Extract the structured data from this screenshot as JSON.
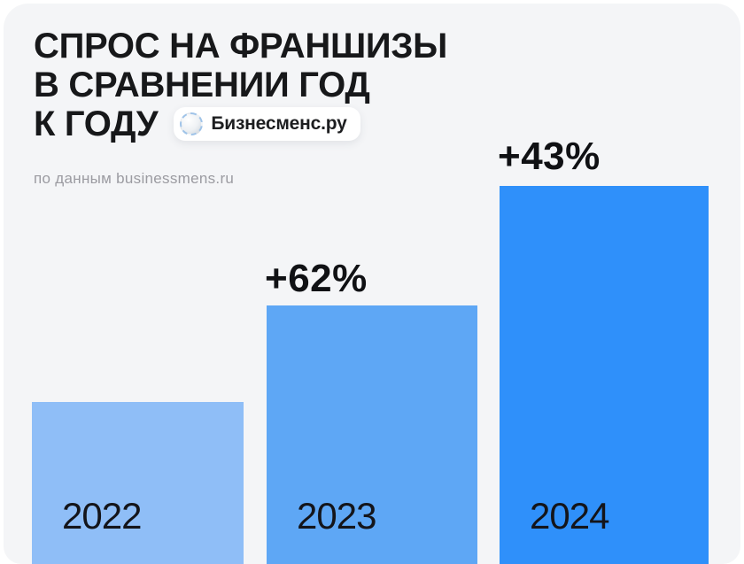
{
  "header": {
    "title_line1": "СПРОС НА ФРАНШИЗЫ",
    "title_line2": "В СРАВНЕНИИ ГОД",
    "title_line3": "К ГОДУ",
    "source_note": "по данным businessmens.ru"
  },
  "badge": {
    "label": "Бизнесменс.ру",
    "icon": "sphere-icon"
  },
  "chart_data": {
    "type": "bar",
    "title": "СПРОС НА ФРАНШИЗЫ В СРАВНЕНИИ ГОД К ГОДУ",
    "source": "по данным businessmens.ru",
    "categories": [
      "2022",
      "2023",
      "2024"
    ],
    "growth_labels": [
      "",
      "+62%",
      "+43%"
    ],
    "values_relative": [
      100,
      162,
      232
    ],
    "bars": [
      {
        "year": "2022",
        "growth": "",
        "relative_value": 100,
        "color": "#8fbef7"
      },
      {
        "year": "2023",
        "growth": "+62%",
        "relative_value": 162,
        "color": "#5ea7f5"
      },
      {
        "year": "2024",
        "growth": "+43%",
        "relative_value": 232,
        "color": "#2f90fa"
      }
    ],
    "xlabel": "",
    "ylabel": "",
    "legend": "none",
    "grid": false
  },
  "colors": {
    "page_background": "#ffffff",
    "card_background": "#f4f5f7",
    "title_text": "#17181a",
    "source_text": "#9b9ba1",
    "badge_background": "#ffffff",
    "badge_ring": "#9fc3e8",
    "bar_2022": "#8fbef7",
    "bar_2023": "#5ea7f5",
    "bar_2024": "#2f90fa",
    "label_text": "#101114"
  }
}
